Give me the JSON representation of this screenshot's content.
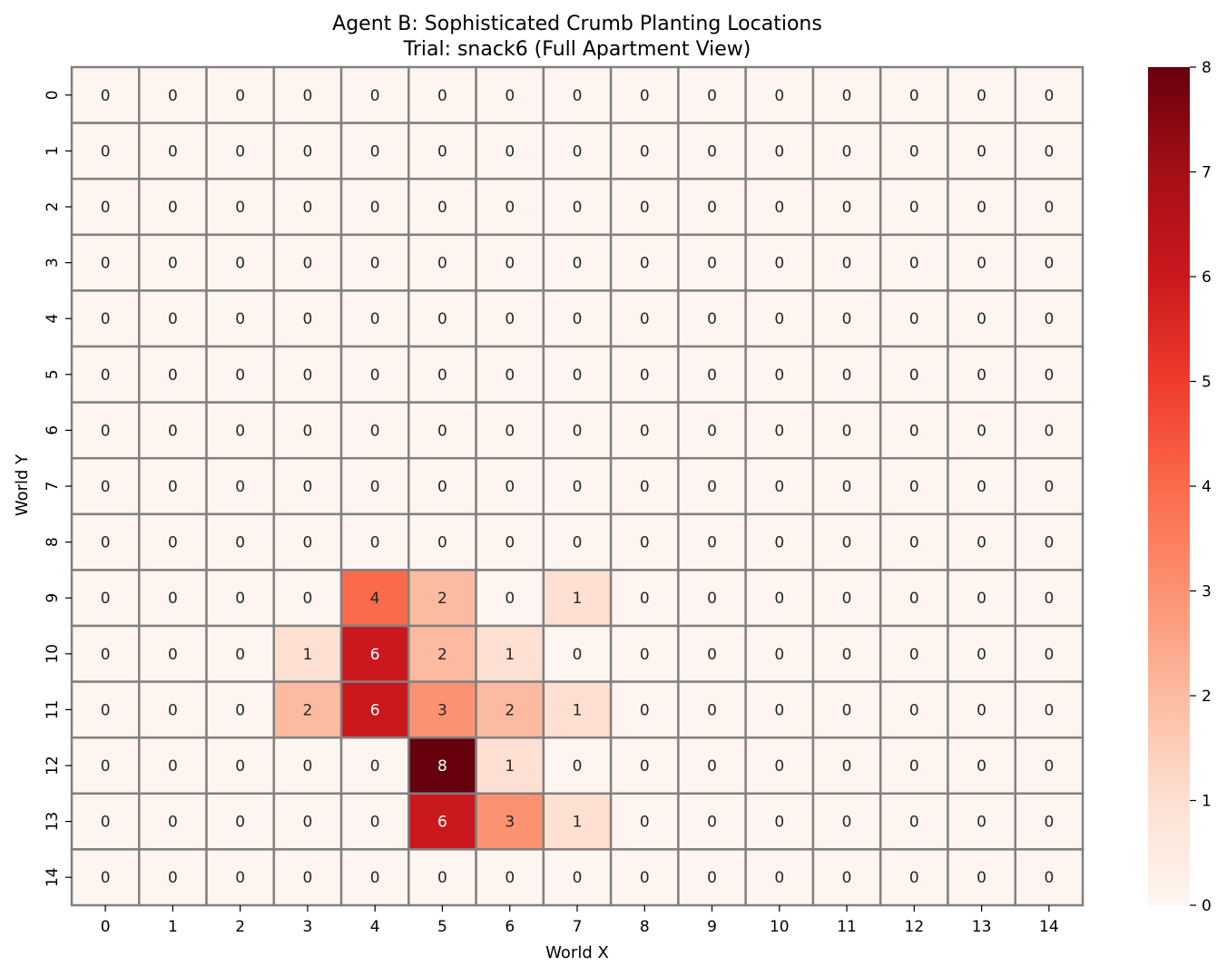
{
  "chart_data": {
    "type": "heatmap",
    "title": "Agent B: Sophisticated Crumb Planting Locations",
    "subtitle": "Trial: snack6 (Full Apartment View)",
    "xlabel": "World X",
    "ylabel": "World Y",
    "x_ticks": [
      "0",
      "1",
      "2",
      "3",
      "4",
      "5",
      "6",
      "7",
      "8",
      "9",
      "10",
      "11",
      "12",
      "13",
      "14"
    ],
    "y_ticks": [
      "0",
      "1",
      "2",
      "3",
      "4",
      "5",
      "6",
      "7",
      "8",
      "9",
      "10",
      "11",
      "12",
      "13",
      "14"
    ],
    "colormap": "Reds",
    "colorbar_range": [
      0,
      8
    ],
    "colorbar_ticks": [
      "0",
      "1",
      "2",
      "3",
      "4",
      "5",
      "6",
      "7",
      "8"
    ],
    "grid_line_color": "#808080",
    "values": [
      [
        0,
        0,
        0,
        0,
        0,
        0,
        0,
        0,
        0,
        0,
        0,
        0,
        0,
        0,
        0
      ],
      [
        0,
        0,
        0,
        0,
        0,
        0,
        0,
        0,
        0,
        0,
        0,
        0,
        0,
        0,
        0
      ],
      [
        0,
        0,
        0,
        0,
        0,
        0,
        0,
        0,
        0,
        0,
        0,
        0,
        0,
        0,
        0
      ],
      [
        0,
        0,
        0,
        0,
        0,
        0,
        0,
        0,
        0,
        0,
        0,
        0,
        0,
        0,
        0
      ],
      [
        0,
        0,
        0,
        0,
        0,
        0,
        0,
        0,
        0,
        0,
        0,
        0,
        0,
        0,
        0
      ],
      [
        0,
        0,
        0,
        0,
        0,
        0,
        0,
        0,
        0,
        0,
        0,
        0,
        0,
        0,
        0
      ],
      [
        0,
        0,
        0,
        0,
        0,
        0,
        0,
        0,
        0,
        0,
        0,
        0,
        0,
        0,
        0
      ],
      [
        0,
        0,
        0,
        0,
        0,
        0,
        0,
        0,
        0,
        0,
        0,
        0,
        0,
        0,
        0
      ],
      [
        0,
        0,
        0,
        0,
        0,
        0,
        0,
        0,
        0,
        0,
        0,
        0,
        0,
        0,
        0
      ],
      [
        0,
        0,
        0,
        0,
        4,
        2,
        0,
        1,
        0,
        0,
        0,
        0,
        0,
        0,
        0
      ],
      [
        0,
        0,
        0,
        1,
        6,
        2,
        1,
        0,
        0,
        0,
        0,
        0,
        0,
        0,
        0
      ],
      [
        0,
        0,
        0,
        2,
        6,
        3,
        2,
        1,
        0,
        0,
        0,
        0,
        0,
        0,
        0
      ],
      [
        0,
        0,
        0,
        0,
        0,
        8,
        1,
        0,
        0,
        0,
        0,
        0,
        0,
        0,
        0
      ],
      [
        0,
        0,
        0,
        0,
        0,
        6,
        3,
        1,
        0,
        0,
        0,
        0,
        0,
        0,
        0
      ],
      [
        0,
        0,
        0,
        0,
        0,
        0,
        0,
        0,
        0,
        0,
        0,
        0,
        0,
        0,
        0
      ]
    ]
  }
}
